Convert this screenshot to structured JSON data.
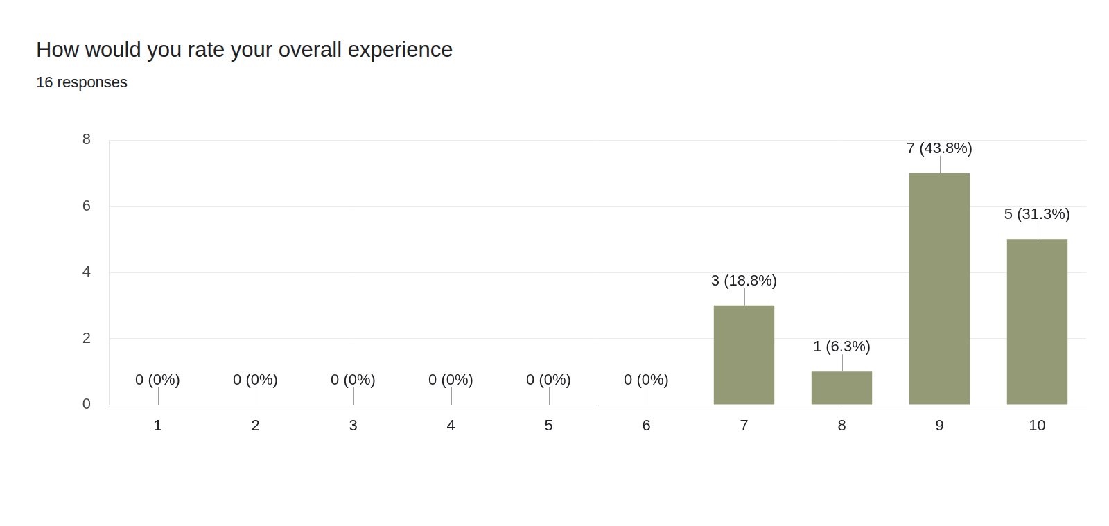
{
  "chart_data": {
    "type": "bar",
    "title": "How would you rate your overall experience",
    "subtitle": "16 responses",
    "categories": [
      "1",
      "2",
      "3",
      "4",
      "5",
      "6",
      "7",
      "8",
      "9",
      "10"
    ],
    "values": [
      0,
      0,
      0,
      0,
      0,
      0,
      3,
      1,
      7,
      5
    ],
    "value_labels": [
      "0 (0%)",
      "0 (0%)",
      "0 (0%)",
      "0 (0%)",
      "0 (0%)",
      "0 (0%)",
      "3 (18.8%)",
      "1 (6.3%)",
      "7 (43.8%)",
      "5 (31.3%)"
    ],
    "data_labels": true,
    "color": "#959a76",
    "ylim": [
      0,
      8
    ],
    "yticks": [
      0,
      2,
      4,
      6,
      8
    ],
    "grid": true
  }
}
